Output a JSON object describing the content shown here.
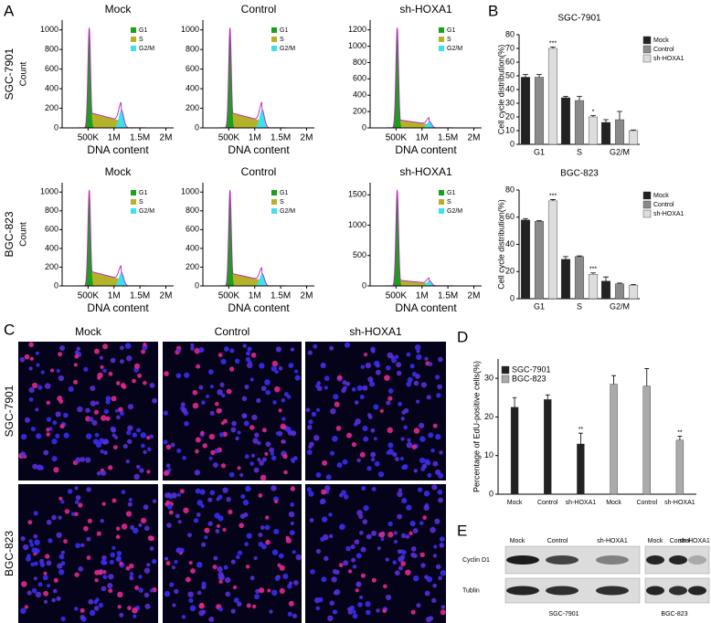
{
  "panel_labels": {
    "a": "A",
    "b": "B",
    "c": "C",
    "d": "D",
    "e": "E"
  },
  "flow": {
    "columns": [
      "Mock",
      "Control",
      "sh-HOXA1"
    ],
    "rows": [
      "SGC-7901",
      "BGC-823"
    ],
    "x_label": "DNA content",
    "y_label": "Count",
    "legend": [
      {
        "name": "G1",
        "color": "#1aa01a"
      },
      {
        "name": "S",
        "color": "#b5b22a"
      },
      {
        "name": "G2/M",
        "color": "#3fe0ee"
      }
    ],
    "xlim": [
      0,
      2150000
    ],
    "xticks": [
      {
        "value": 500000,
        "label": "500K"
      },
      {
        "value": 1000000,
        "label": "1M"
      },
      {
        "value": 1500000,
        "label": "1.5M"
      },
      {
        "value": 2000000,
        "label": "2M"
      }
    ],
    "plots": [
      [
        {
          "ylim": [
            0,
            1100
          ],
          "yticks": [
            0,
            200,
            400,
            600,
            800,
            1000
          ]
        },
        {
          "ylim": [
            0,
            1100
          ],
          "yticks": [
            0,
            200,
            400,
            600,
            800,
            1000
          ]
        },
        {
          "ylim": [
            0,
            1320
          ],
          "yticks": [
            0,
            200,
            400,
            600,
            800,
            1000,
            1200
          ]
        }
      ],
      [
        {
          "ylim": [
            0,
            1100
          ],
          "yticks": [
            0,
            200,
            400,
            600,
            800,
            1000
          ]
        },
        {
          "ylim": [
            0,
            1100
          ],
          "yticks": [
            0,
            200,
            400,
            600,
            800,
            1000
          ]
        },
        {
          "ylim": [
            0,
            1700
          ],
          "yticks": [
            0,
            500,
            1000,
            1500
          ]
        }
      ]
    ]
  },
  "chart_data": [
    {
      "type": "bar",
      "title": "SGC-7901",
      "y_label": "Cell cycle distribution(%)",
      "categories": [
        "G1",
        "S",
        "G2/M"
      ],
      "ylim": [
        0,
        80
      ],
      "yticks": [
        0,
        10,
        20,
        30,
        40,
        50,
        60,
        70,
        80
      ],
      "legend": "right",
      "series": [
        {
          "name": "Mock",
          "color": "#222222",
          "values": [
            49,
            34,
            16
          ],
          "errors": [
            2,
            1,
            2
          ],
          "significance": [
            null,
            null,
            null
          ]
        },
        {
          "name": "Control",
          "color": "#8a8a8a",
          "values": [
            49,
            32,
            18
          ],
          "errors": [
            2,
            3,
            6
          ],
          "significance": [
            null,
            null,
            null
          ]
        },
        {
          "name": "sh-HOXA1",
          "color": "#dddddd",
          "values": [
            70,
            20,
            10
          ],
          "errors": [
            1,
            1,
            0.5
          ],
          "significance": [
            "***",
            "*",
            null
          ]
        }
      ]
    },
    {
      "type": "bar",
      "title": "BGC-823",
      "y_label": "Cell cycle distribution(%)",
      "categories": [
        "G1",
        "S",
        "G2/M"
      ],
      "ylim": [
        0,
        80
      ],
      "yticks": [
        0,
        20,
        40,
        60,
        80
      ],
      "legend": "right",
      "series": [
        {
          "name": "Mock",
          "color": "#222222",
          "values": [
            58,
            29,
            13
          ],
          "errors": [
            1,
            2,
            3
          ],
          "significance": [
            null,
            null,
            null
          ]
        },
        {
          "name": "Control",
          "color": "#8a8a8a",
          "values": [
            57,
            31,
            11
          ],
          "errors": [
            0.5,
            0.5,
            0.5
          ],
          "significance": [
            null,
            null,
            null
          ]
        },
        {
          "name": "sh-HOXA1",
          "color": "#dddddd",
          "values": [
            72,
            18,
            10
          ],
          "errors": [
            1,
            1,
            0.5
          ],
          "significance": [
            "***",
            "***",
            null
          ]
        }
      ]
    },
    {
      "type": "bar",
      "y_label": "Percentage of EdU-positive cells(%)",
      "categories": [
        "Mock",
        "Control",
        "sh-HOXA1",
        "Mock",
        "Control",
        "sh-HOXA1"
      ],
      "ylim": [
        0,
        35
      ],
      "yticks": [
        0,
        10,
        20,
        30
      ],
      "legend": "upper left",
      "series": [
        {
          "name": "SGC-7901",
          "color": "#222222",
          "values": [
            22.5,
            24.5,
            13,
            null,
            null,
            null
          ],
          "errors": [
            2.5,
            1.2,
            2.8,
            null,
            null,
            null
          ],
          "significance": [
            null,
            null,
            "**",
            null,
            null,
            null
          ]
        },
        {
          "name": "BGC-823",
          "color": "#aaaaaa",
          "values": [
            null,
            null,
            null,
            28.5,
            28,
            14
          ],
          "errors": [
            null,
            null,
            null,
            2.2,
            4.5,
            1
          ],
          "significance": [
            null,
            null,
            null,
            null,
            null,
            "**"
          ]
        }
      ]
    }
  ],
  "cells": {
    "columns": [
      "Mock",
      "Control",
      "sh-HOXA1"
    ],
    "rows": [
      "SGC-7901",
      "BGC-823"
    ]
  },
  "western": {
    "lanes": [
      "Mock",
      "Control",
      "sh-HOXA1",
      "Mock",
      "Control",
      "sh-HOXA1"
    ],
    "proteins": [
      "Cyclin D1",
      "Tublin"
    ],
    "groups": [
      "SGC-7901",
      "BGC-823"
    ]
  }
}
